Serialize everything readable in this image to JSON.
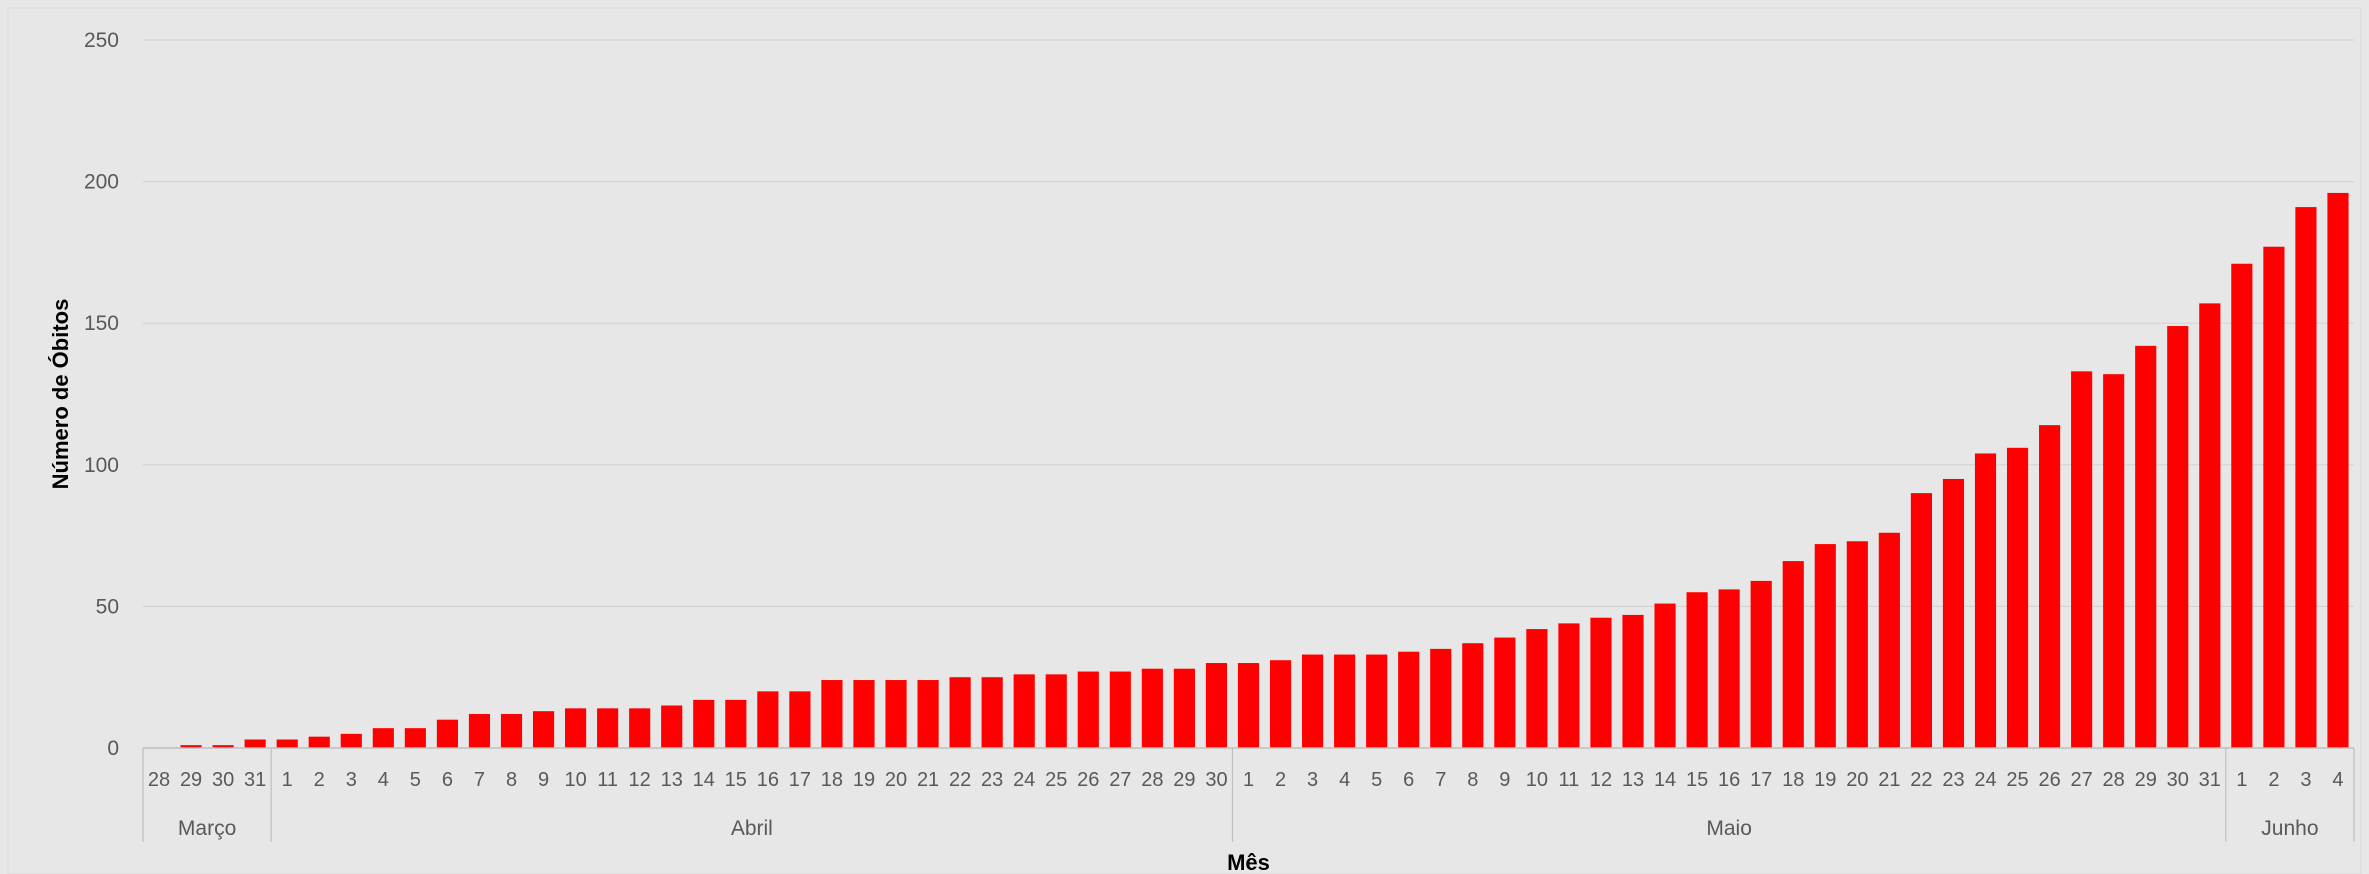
{
  "chart_data": {
    "type": "bar",
    "xlabel": "Mês",
    "ylabel": "Número de Óbitos",
    "ylim": [
      0,
      250
    ],
    "y_ticks": [
      0,
      50,
      100,
      150,
      200,
      250
    ],
    "grid": true,
    "legend": "none",
    "groups": [
      {
        "month": "Março",
        "days": [
          "28",
          "29",
          "30",
          "31"
        ]
      },
      {
        "month": "Abril",
        "days": [
          "1",
          "2",
          "3",
          "4",
          "5",
          "6",
          "7",
          "8",
          "9",
          "10",
          "11",
          "12",
          "13",
          "14",
          "15",
          "16",
          "17",
          "18",
          "19",
          "20",
          "21",
          "22",
          "23",
          "24",
          "25",
          "26",
          "27",
          "28",
          "29",
          "30"
        ]
      },
      {
        "month": "Maio",
        "days": [
          "1",
          "2",
          "3",
          "4",
          "5",
          "6",
          "7",
          "8",
          "9",
          "10",
          "11",
          "12",
          "13",
          "14",
          "15",
          "16",
          "17",
          "18",
          "19",
          "20",
          "21",
          "22",
          "23",
          "24",
          "25",
          "26",
          "27",
          "28",
          "29",
          "30",
          "31"
        ]
      },
      {
        "month": "Junho",
        "days": [
          "1",
          "2",
          "3",
          "4"
        ]
      }
    ],
    "values": [
      0,
      1,
      1,
      3,
      3,
      4,
      5,
      7,
      7,
      10,
      12,
      12,
      13,
      14,
      14,
      14,
      15,
      17,
      17,
      20,
      20,
      24,
      24,
      24,
      24,
      25,
      25,
      26,
      26,
      27,
      27,
      28,
      28,
      30,
      30,
      31,
      33,
      33,
      33,
      34,
      35,
      37,
      39,
      42,
      44,
      46,
      47,
      51,
      55,
      56,
      59,
      66,
      72,
      73,
      76,
      90,
      95,
      104,
      106,
      114,
      133,
      132,
      142,
      149,
      157,
      171,
      177,
      191,
      196
    ],
    "colors": {
      "bar": "#ff0000",
      "grid": "#d4d4d4",
      "axis": "#bfbfbf",
      "background": "#e7e7e7"
    }
  }
}
